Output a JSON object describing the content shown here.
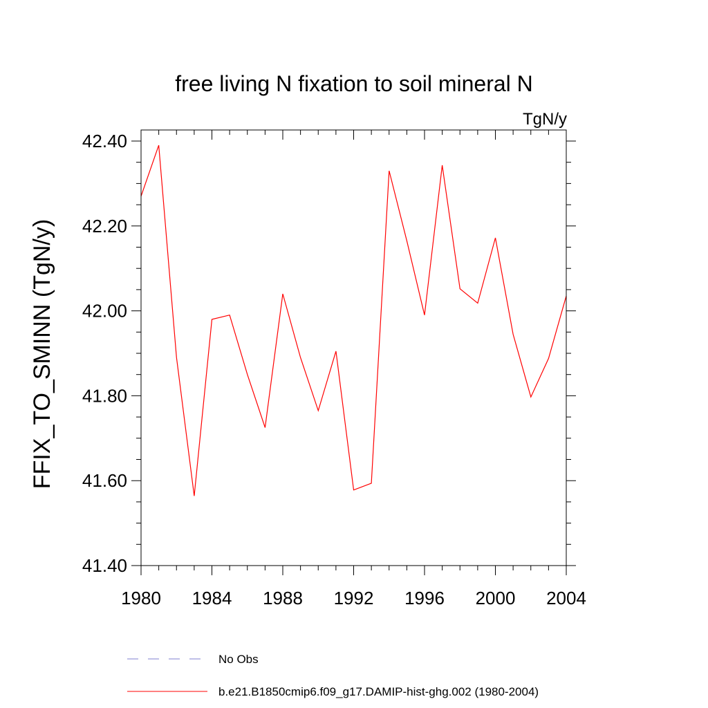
{
  "chart_data": {
    "type": "line",
    "title": "free living N fixation to soil mineral N",
    "units": "TgN/y",
    "ylabel": "FFIX_TO_SMINN  (TgN/y)",
    "xlabel": "",
    "xlim": [
      1980,
      2004
    ],
    "ylim": [
      41.4,
      42.4
    ],
    "x_ticks": [
      1980,
      1984,
      1988,
      1992,
      1996,
      2000,
      2004
    ],
    "x_tick_labels": [
      "1980",
      "1984",
      "1988",
      "1992",
      "1996",
      "2000",
      "2004"
    ],
    "y_ticks": [
      41.4,
      41.6,
      41.8,
      42.0,
      42.2,
      42.4
    ],
    "y_tick_labels": [
      "41.40",
      "41.60",
      "41.80",
      "42.00",
      "42.20",
      "42.40"
    ],
    "grid": false,
    "legend_position": "bottom",
    "series": [
      {
        "name": "b.e21.B1850cmip6.f09_g17.DAMIP-hist-ghg.002 (1980-2004)",
        "color": "#ff0000",
        "style": "solid",
        "x": [
          1980,
          1981,
          1982,
          1983,
          1984,
          1985,
          1986,
          1987,
          1988,
          1989,
          1990,
          1991,
          1992,
          1993,
          1994,
          1995,
          1996,
          1997,
          1998,
          1999,
          2000,
          2001,
          2002,
          2003,
          2004
        ],
        "y": [
          42.27,
          42.39,
          41.89,
          41.564,
          41.98,
          41.99,
          41.85,
          41.725,
          42.04,
          41.89,
          41.765,
          41.905,
          41.578,
          41.594,
          42.33,
          42.165,
          41.99,
          42.343,
          42.052,
          42.018,
          42.172,
          41.945,
          41.797,
          41.888,
          42.035
        ]
      },
      {
        "name": "No Obs",
        "color": "#7f7fd0",
        "style": "dashed",
        "x": [],
        "y": []
      }
    ]
  }
}
